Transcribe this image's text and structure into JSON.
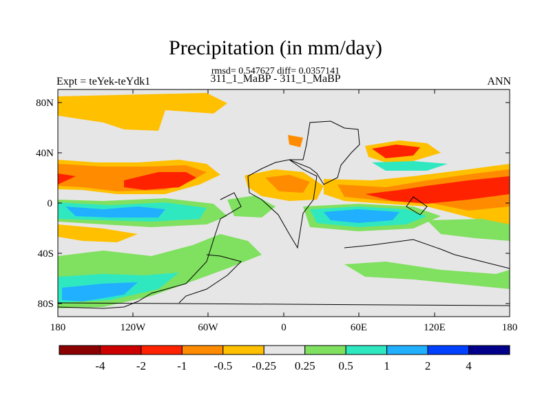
{
  "title": "Precipitation (in mm/day)",
  "stats": "rmsd= 0.547627 diff= 0.0357141",
  "subtitle": "311_1_MaBP - 311_1_MaBP",
  "left_label": "Expt = teYek-teYdk1",
  "right_label": "ANN",
  "axes": {
    "x_ticks": [
      "180",
      "120W",
      "60W",
      "0",
      "60E",
      "120E",
      "180"
    ],
    "y_ticks": [
      "80N",
      "40N",
      "0",
      "40S",
      "80S"
    ]
  },
  "colorbar": {
    "boundaries": [
      "-4",
      "-2",
      "-1",
      "-0.5",
      "-0.25",
      "0.25",
      "0.5",
      "1",
      "2",
      "4"
    ],
    "colors": [
      "#8b0000",
      "#cc0000",
      "#ff2200",
      "#ff8c00",
      "#ffc000",
      "#e6e6e6",
      "#80e060",
      "#30e8c0",
      "#20b0ff",
      "#0040ff",
      "#00008b"
    ]
  },
  "colors": {
    "background_field": "#e6e6e6",
    "strong_dry": "#ff2200",
    "moderate_dry": "#ff8c00",
    "weak_dry": "#ffc000",
    "weak_wet": "#80e060",
    "moderate_wet": "#30e8c0",
    "strong_wet": "#20b0ff"
  }
}
